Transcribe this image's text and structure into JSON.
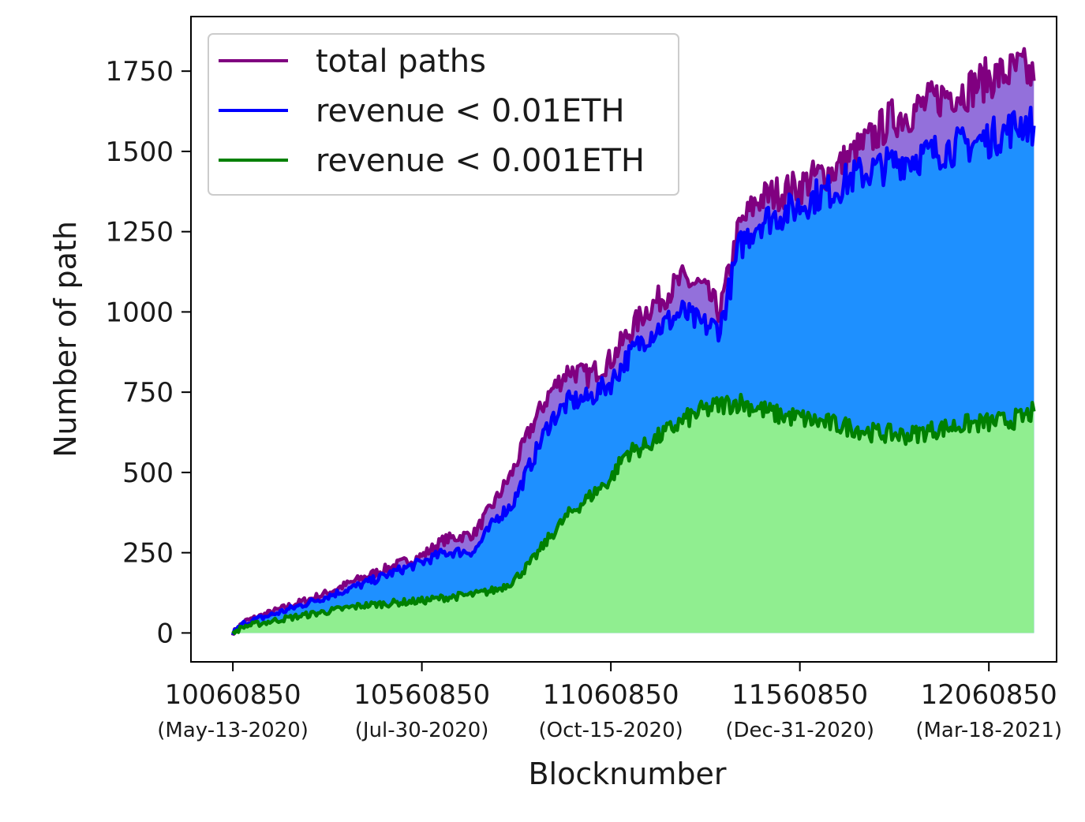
{
  "chart_data": {
    "type": "area",
    "xlabel": "Blocknumber",
    "ylabel": "Number of path",
    "xlim": [
      9950000,
      12240000
    ],
    "ylim": [
      -90,
      1920
    ],
    "x_ticks": [
      {
        "value": 10060850,
        "label": "10060850",
        "date": "(May-13-2020)"
      },
      {
        "value": 10560850,
        "label": "10560850",
        "date": "(Jul-30-2020)"
      },
      {
        "value": 11060850,
        "label": "11060850",
        "date": "(Oct-15-2020)"
      },
      {
        "value": 11560850,
        "label": "11560850",
        "date": "(Dec-31-2020)"
      },
      {
        "value": 12060850,
        "label": "12060850",
        "date": "(Mar-18-2021)"
      }
    ],
    "y_ticks": [
      0,
      250,
      500,
      750,
      1000,
      1250,
      1500,
      1750
    ],
    "legend_position": "top-left",
    "grid": false,
    "series": [
      {
        "name": "total paths",
        "color": "#800080",
        "fill": "#9370DB",
        "x": [
          10060850,
          10090000,
          10200000,
          10300000,
          10400000,
          10500000,
          10560850,
          10620000,
          10700000,
          10760000,
          10800000,
          10850000,
          10900000,
          10950000,
          11000000,
          11060850,
          11100000,
          11150000,
          11200000,
          11250000,
          11300000,
          11350000,
          11400000,
          11450000,
          11500000,
          11560850,
          11600000,
          11650000,
          11700000,
          11750000,
          11800000,
          11850000,
          11900000,
          11950000,
          12000000,
          12060850,
          12100000,
          12150000,
          12180000
        ],
        "y": [
          0,
          35,
          80,
          120,
          170,
          215,
          240,
          290,
          310,
          420,
          500,
          640,
          750,
          820,
          800,
          850,
          920,
          1000,
          1050,
          1100,
          1080,
          1000,
          1260,
          1350,
          1370,
          1390,
          1420,
          1440,
          1490,
          1540,
          1600,
          1620,
          1650,
          1680,
          1690,
          1730,
          1740,
          1760,
          1720
        ]
      },
      {
        "name": "revenue < 0.01ETH",
        "color": "#0000FF",
        "fill": "#1E90FF",
        "x": [
          10060850,
          10090000,
          10200000,
          10300000,
          10400000,
          10500000,
          10560850,
          10620000,
          10700000,
          10760000,
          10800000,
          10850000,
          10900000,
          10950000,
          11000000,
          11060850,
          11100000,
          11150000,
          11200000,
          11250000,
          11300000,
          11350000,
          11400000,
          11450000,
          11500000,
          11560850,
          11600000,
          11650000,
          11700000,
          11750000,
          11800000,
          11850000,
          11900000,
          11950000,
          12000000,
          12060850,
          12100000,
          12150000,
          12180000
        ],
        "y": [
          0,
          30,
          70,
          110,
          150,
          195,
          220,
          250,
          255,
          360,
          400,
          530,
          660,
          720,
          730,
          780,
          850,
          920,
          960,
          1000,
          960,
          950,
          1200,
          1280,
          1300,
          1330,
          1360,
          1380,
          1420,
          1440,
          1460,
          1480,
          1490,
          1510,
          1520,
          1540,
          1560,
          1590,
          1580
        ]
      },
      {
        "name": "revenue < 0.001ETH",
        "color": "#008000",
        "fill": "#90EE90",
        "x": [
          10060850,
          10090000,
          10200000,
          10300000,
          10400000,
          10500000,
          10560850,
          10620000,
          10700000,
          10760000,
          10800000,
          10850000,
          10900000,
          10950000,
          11000000,
          11060850,
          11100000,
          11150000,
          11200000,
          11250000,
          11300000,
          11350000,
          11400000,
          11450000,
          11500000,
          11560850,
          11600000,
          11650000,
          11700000,
          11750000,
          11800000,
          11850000,
          11900000,
          11950000,
          12000000,
          12060850,
          12100000,
          12150000,
          12180000
        ],
        "y": [
          0,
          20,
          45,
          65,
          85,
          95,
          100,
          110,
          120,
          135,
          160,
          220,
          300,
          370,
          420,
          480,
          560,
          580,
          620,
          660,
          690,
          710,
          720,
          700,
          680,
          670,
          660,
          650,
          640,
          625,
          620,
          615,
          630,
          640,
          650,
          655,
          660,
          670,
          690
        ]
      }
    ]
  }
}
